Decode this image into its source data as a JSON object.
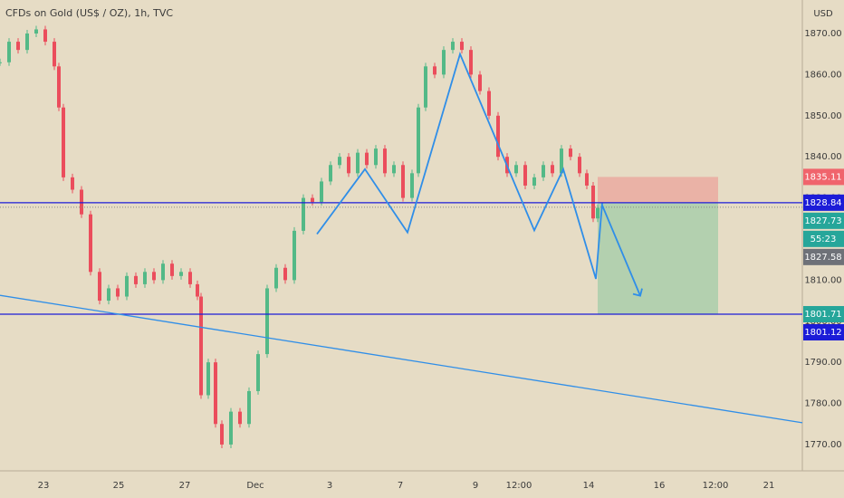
{
  "chart_data": {
    "type": "candlestick",
    "title": "CFDs on Gold (US$ / OZ), 1h, TVC",
    "currency": "USD",
    "xlim": [
      0,
      886
    ],
    "ylim": [
      1763.6,
      1878.15
    ],
    "yticks": [
      {
        "value": 1770,
        "label": "1770.00"
      },
      {
        "value": 1780,
        "label": "1780.00"
      },
      {
        "value": 1790,
        "label": "1790.00"
      },
      {
        "value": 1800,
        "label": "1800.00"
      },
      {
        "value": 1810,
        "label": "1810.00"
      },
      {
        "value": 1820,
        "label": "1820.00"
      },
      {
        "value": 1830,
        "label": "1830.00"
      },
      {
        "value": 1840,
        "label": "1840.00"
      },
      {
        "value": 1850,
        "label": "1850.00"
      },
      {
        "value": 1860,
        "label": "1860.00"
      },
      {
        "value": 1870,
        "label": "1870.00"
      }
    ],
    "xticks": [
      {
        "value": 48,
        "label": "23"
      },
      {
        "value": 131,
        "label": "25"
      },
      {
        "value": 204,
        "label": "27"
      },
      {
        "value": 282,
        "label": "Dec"
      },
      {
        "value": 364,
        "label": "3"
      },
      {
        "value": 442,
        "label": "7"
      },
      {
        "value": 525,
        "label": "9"
      },
      {
        "value": 573,
        "label": "12:00"
      },
      {
        "value": 650,
        "label": "14"
      },
      {
        "value": 728,
        "label": "16"
      },
      {
        "value": 790,
        "label": "12:00"
      },
      {
        "value": 849,
        "label": "21"
      }
    ],
    "x": [
      0,
      10,
      20,
      30,
      40,
      50,
      60,
      65,
      70,
      80,
      90,
      100,
      110,
      120,
      130,
      140,
      150,
      160,
      170,
      180,
      190,
      200,
      210,
      218,
      222,
      230,
      238,
      245,
      255,
      265,
      275,
      285,
      295,
      305,
      315,
      325,
      335,
      345,
      355,
      365,
      375,
      385,
      395,
      405,
      415,
      425,
      435,
      445,
      455,
      462,
      470,
      480,
      490,
      500,
      510,
      520,
      530,
      540,
      550,
      560,
      570,
      580,
      590,
      600,
      610,
      620,
      630,
      640,
      648,
      655,
      660
    ],
    "values": [
      1863,
      1868,
      1866,
      1870,
      1871,
      1868,
      1862,
      1852,
      1835,
      1832,
      1826,
      1812,
      1805,
      1808,
      1806,
      1811,
      1809,
      1812,
      1810,
      1814,
      1811,
      1812,
      1809,
      1806,
      1782,
      1790,
      1775,
      1770,
      1778,
      1775,
      1783,
      1792,
      1808,
      1813,
      1810,
      1822,
      1830,
      1829,
      1834,
      1838,
      1840,
      1836,
      1841,
      1838,
      1842,
      1836,
      1838,
      1830,
      1836,
      1852,
      1862,
      1860,
      1866,
      1868,
      1866,
      1860,
      1856,
      1850,
      1840,
      1836,
      1838,
      1833,
      1835,
      1838,
      1836,
      1842,
      1840,
      1836,
      1833,
      1825,
      1827.58
    ],
    "up_color": "#53b987",
    "down_color": "#eb4d5c",
    "horizontal_lines": [
      1828.84,
      1801.71
    ],
    "line_color": "#1c1cd8",
    "drawing_color": "#2f8ee8",
    "trend_line": {
      "x": [
        0,
        886
      ],
      "values": [
        1806.3,
        1775.3
      ]
    },
    "pattern": {
      "x": [
        350,
        403,
        450,
        508,
        590,
        622,
        658,
        665
      ],
      "values": [
        1821.2,
        1837,
        1821.6,
        1865,
        1822.1,
        1837,
        1810.3,
        1828.7
      ]
    },
    "arrow": {
      "x": [
        665,
        707
      ],
      "values": [
        1828.2,
        1806.2
      ]
    },
    "position": {
      "x": [
        660,
        793
      ],
      "entry": 1828.84,
      "stop": 1835.11,
      "target": 1801.71
    },
    "price_tags": [
      {
        "value": 1835.11,
        "color": "#f0646c"
      },
      {
        "value": 1828.84,
        "color": "#1c1cd8"
      },
      {
        "value": 1827.73,
        "color": "#26a69a"
      },
      {
        "value": 1827.58,
        "color": "#6e7178"
      },
      {
        "value": 1801.71,
        "color": "#26a69a"
      },
      {
        "value": 1801.12,
        "color": "#1c1cd8"
      }
    ],
    "countdown": "55:23"
  }
}
